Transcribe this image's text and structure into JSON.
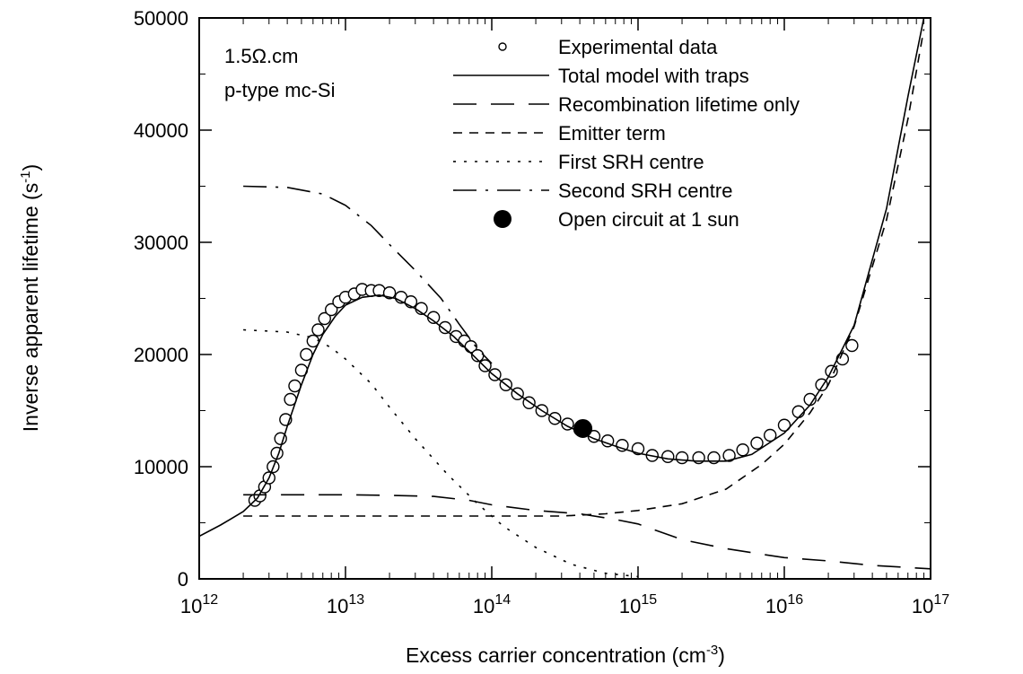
{
  "chart_data": {
    "type": "scatter",
    "x_scale": "log",
    "xlim": [
      1000000000000.0,
      1e+17
    ],
    "ylim": [
      0,
      50000
    ],
    "x_tick_exponents": [
      "12",
      "13",
      "14",
      "15",
      "16",
      "17"
    ],
    "x_tick_base": "10",
    "y_ticks": [
      "0",
      "10000",
      "20000",
      "30000",
      "40000",
      "50000"
    ],
    "xlabel": {
      "text": "Excess carrier concentration (cm",
      "sup": "-3",
      "tail": ")"
    },
    "ylabel": {
      "text": "Inverse apparent lifetime (s",
      "sup": "-1",
      "tail": ")"
    },
    "annotations": [
      "1.5Ω.cm",
      "p-type mc-Si"
    ],
    "legend_position": "top-right",
    "series": [
      {
        "name": "Experimental data",
        "style": "open-circle",
        "points": [
          [
            2400000000000.0,
            7000
          ],
          [
            2600000000000.0,
            7400
          ],
          [
            2800000000000.0,
            8200
          ],
          [
            3000000000000.0,
            9000
          ],
          [
            3200000000000.0,
            10000
          ],
          [
            3400000000000.0,
            11200
          ],
          [
            3600000000000.0,
            12500
          ],
          [
            3900000000000.0,
            14200
          ],
          [
            4200000000000.0,
            16000
          ],
          [
            4500000000000.0,
            17200
          ],
          [
            5000000000000.0,
            18600
          ],
          [
            5400000000000.0,
            20000
          ],
          [
            6000000000000.0,
            21200
          ],
          [
            6500000000000.0,
            22200
          ],
          [
            7200000000000.0,
            23200
          ],
          [
            8000000000000.0,
            24000
          ],
          [
            9000000000000.0,
            24700
          ],
          [
            10000000000000.0,
            25100
          ],
          [
            11500000000000.0,
            25400
          ],
          [
            13000000000000.0,
            25800
          ],
          [
            15000000000000.0,
            25700
          ],
          [
            17000000000000.0,
            25700
          ],
          [
            20000000000000.0,
            25500
          ],
          [
            24000000000000.0,
            25100
          ],
          [
            28000000000000.0,
            24700
          ],
          [
            33000000000000.0,
            24100
          ],
          [
            40000000000000.0,
            23300
          ],
          [
            48000000000000.0,
            22400
          ],
          [
            57000000000000.0,
            21600
          ],
          [
            65000000000000.0,
            21200
          ],
          [
            72000000000000.0,
            20700
          ],
          [
            80000000000000.0,
            19900
          ],
          [
            90000000000000.0,
            19000
          ],
          [
            105000000000000.0,
            18200
          ],
          [
            125000000000000.0,
            17300
          ],
          [
            150000000000000.0,
            16500
          ],
          [
            180000000000000.0,
            15700
          ],
          [
            220000000000000.0,
            15000
          ],
          [
            270000000000000.0,
            14300
          ],
          [
            330000000000000.0,
            13800
          ],
          [
            400000000000000.0,
            13300
          ],
          [
            500000000000000.0,
            12700
          ],
          [
            620000000000000.0,
            12300
          ],
          [
            780000000000000.0,
            11900
          ],
          [
            1000000000000000.0,
            11600
          ],
          [
            1250000000000000.0,
            11000
          ],
          [
            1600000000000000.0,
            10900
          ],
          [
            2000000000000000.0,
            10800
          ],
          [
            2600000000000000.0,
            10800
          ],
          [
            3300000000000000.0,
            10800
          ],
          [
            4200000000000000.0,
            11000
          ],
          [
            5200000000000000.0,
            11500
          ],
          [
            6500000000000000.0,
            12100
          ],
          [
            8000000000000000.0,
            12800
          ],
          [
            1e+16,
            13700
          ],
          [
            1.25e+16,
            14900
          ],
          [
            1.5e+16,
            16000
          ],
          [
            1.8e+16,
            17300
          ],
          [
            2.1e+16,
            18500
          ],
          [
            2.5e+16,
            19600
          ],
          [
            2.9e+16,
            20800
          ]
        ]
      },
      {
        "name": "Total model with traps",
        "style": "solid",
        "points": [
          [
            1000000000000.0,
            3800
          ],
          [
            1400000000000.0,
            4800
          ],
          [
            2000000000000.0,
            6000
          ],
          [
            2500000000000.0,
            7200
          ],
          [
            3000000000000.0,
            9000
          ],
          [
            3500000000000.0,
            11200
          ],
          [
            4000000000000.0,
            13600
          ],
          [
            5000000000000.0,
            17300
          ],
          [
            6000000000000.0,
            20000
          ],
          [
            7000000000000.0,
            21800
          ],
          [
            8500000000000.0,
            23400
          ],
          [
            10000000000000.0,
            24400
          ],
          [
            13000000000000.0,
            25100
          ],
          [
            17000000000000.0,
            25300
          ],
          [
            22000000000000.0,
            25000
          ],
          [
            30000000000000.0,
            24100
          ],
          [
            40000000000000.0,
            23000
          ],
          [
            55000000000000.0,
            21600
          ],
          [
            75000000000000.0,
            19900
          ],
          [
            100000000000000.0,
            18300
          ],
          [
            150000000000000.0,
            16500
          ],
          [
            220000000000000.0,
            15000
          ],
          [
            330000000000000.0,
            13600
          ],
          [
            500000000000000.0,
            12500
          ],
          [
            750000000000000.0,
            11700
          ],
          [
            1000000000000000.0,
            11200
          ],
          [
            1600000000000000.0,
            10700
          ],
          [
            2500000000000000.0,
            10500
          ],
          [
            4000000000000000.0,
            10500
          ],
          [
            6000000000000000.0,
            11100
          ],
          [
            1e+16,
            13000
          ],
          [
            1.5e+16,
            15500
          ],
          [
            2e+16,
            18000
          ],
          [
            3e+16,
            22600
          ],
          [
            5e+16,
            33000
          ],
          [
            7e+16,
            43000
          ],
          [
            9e+16,
            50000
          ]
        ]
      },
      {
        "name": "Recombination lifetime only",
        "style": "long-dash",
        "points": [
          [
            2000000000000.0,
            7500
          ],
          [
            5000000000000.0,
            7500
          ],
          [
            10000000000000.0,
            7500
          ],
          [
            20000000000000.0,
            7450
          ],
          [
            40000000000000.0,
            7350
          ],
          [
            70000000000000.0,
            7000
          ],
          [
            100000000000000.0,
            6600
          ],
          [
            200000000000000.0,
            6100
          ],
          [
            400000000000000.0,
            5800
          ],
          [
            700000000000000.0,
            5300
          ],
          [
            1000000000000000.0,
            4900
          ],
          [
            2000000000000000.0,
            3500
          ],
          [
            4000000000000000.0,
            2700
          ],
          [
            7000000000000000.0,
            2200
          ],
          [
            1e+16,
            1900
          ],
          [
            2e+16,
            1600
          ],
          [
            4e+16,
            1200
          ],
          [
            1e+17,
            900
          ]
        ]
      },
      {
        "name": "Emitter term",
        "style": "dash",
        "points": [
          [
            2000000000000.0,
            5600
          ],
          [
            5000000000000.0,
            5600
          ],
          [
            10000000000000.0,
            5600
          ],
          [
            30000000000000.0,
            5600
          ],
          [
            100000000000000.0,
            5600
          ],
          [
            300000000000000.0,
            5600
          ],
          [
            600000000000000.0,
            5800
          ],
          [
            1000000000000000.0,
            6100
          ],
          [
            2000000000000000.0,
            6700
          ],
          [
            4000000000000000.0,
            8000
          ],
          [
            7000000000000000.0,
            10200
          ],
          [
            1e+16,
            12000
          ],
          [
            1.5e+16,
            14800
          ],
          [
            2e+16,
            17300
          ],
          [
            3e+16,
            22500
          ],
          [
            5e+16,
            32000
          ],
          [
            7e+16,
            41000
          ],
          [
            9e+16,
            49000
          ]
        ]
      },
      {
        "name": "First SRH centre",
        "style": "dot",
        "points": [
          [
            2000000000000.0,
            22200
          ],
          [
            4000000000000.0,
            22000
          ],
          [
            6000000000000.0,
            21500
          ],
          [
            8000000000000.0,
            20600
          ],
          [
            10000000000000.0,
            19600
          ],
          [
            15000000000000.0,
            17400
          ],
          [
            20000000000000.0,
            15300
          ],
          [
            30000000000000.0,
            12500
          ],
          [
            50000000000000.0,
            9300
          ],
          [
            80000000000000.0,
            6700
          ],
          [
            120000000000000.0,
            4700
          ],
          [
            200000000000000.0,
            2800
          ],
          [
            350000000000000.0,
            1300
          ],
          [
            600000000000000.0,
            500
          ],
          [
            1000000000000000.0,
            200
          ]
        ]
      },
      {
        "name": "Second SRH centre",
        "style": "dash-dot",
        "points": [
          [
            2000000000000.0,
            35000
          ],
          [
            4000000000000.0,
            34900
          ],
          [
            7000000000000.0,
            34300
          ],
          [
            10000000000000.0,
            33300
          ],
          [
            15000000000000.0,
            31500
          ],
          [
            20000000000000.0,
            29800
          ],
          [
            30000000000000.0,
            27500
          ],
          [
            45000000000000.0,
            25000
          ],
          [
            60000000000000.0,
            22700
          ],
          [
            80000000000000.0,
            20500
          ],
          [
            100000000000000.0,
            19200
          ]
        ]
      },
      {
        "name": "Open circuit at 1 sun",
        "style": "filled-circle",
        "points": [
          [
            420000000000000.0,
            13400
          ]
        ]
      }
    ]
  }
}
